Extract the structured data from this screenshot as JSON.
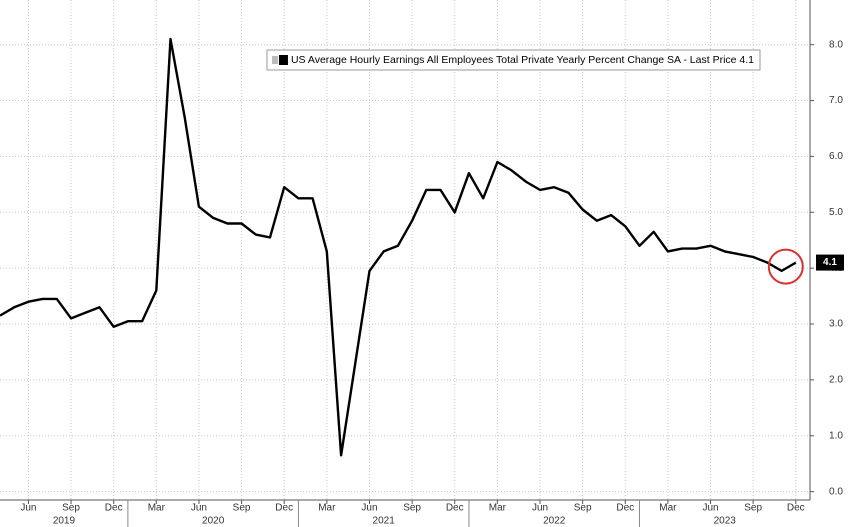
{
  "chart_data": {
    "type": "line",
    "legend": "US Average Hourly Earnings All Employees Total Private Yearly Percent Change SA - Last Price 4.1",
    "legend_corner": "top-right",
    "grid": true,
    "x": [
      "2019-04",
      "2019-05",
      "2019-06",
      "2019-07",
      "2019-08",
      "2019-09",
      "2019-10",
      "2019-11",
      "2019-12",
      "2020-01",
      "2020-02",
      "2020-03",
      "2020-04",
      "2020-05",
      "2020-06",
      "2020-07",
      "2020-08",
      "2020-09",
      "2020-10",
      "2020-11",
      "2020-12",
      "2021-01",
      "2021-02",
      "2021-03",
      "2021-04",
      "2021-05",
      "2021-06",
      "2021-07",
      "2021-08",
      "2021-09",
      "2021-10",
      "2021-11",
      "2021-12",
      "2022-01",
      "2022-02",
      "2022-03",
      "2022-04",
      "2022-05",
      "2022-06",
      "2022-07",
      "2022-08",
      "2022-09",
      "2022-10",
      "2022-11",
      "2022-12",
      "2023-01",
      "2023-02",
      "2023-03",
      "2023-04",
      "2023-05",
      "2023-06",
      "2023-07",
      "2023-08",
      "2023-09",
      "2023-10",
      "2023-11",
      "2023-12"
    ],
    "series": [
      {
        "name": "US Average Hourly Earnings All Employees Total Private Yearly Percent Change SA",
        "color": "#000000",
        "values": [
          3.15,
          3.3,
          3.4,
          3.45,
          3.45,
          3.1,
          3.2,
          3.3,
          2.95,
          3.05,
          3.05,
          3.6,
          8.1,
          6.7,
          5.1,
          4.9,
          4.8,
          4.8,
          4.6,
          4.55,
          5.45,
          5.25,
          5.25,
          4.3,
          0.65,
          2.3,
          3.95,
          4.3,
          4.4,
          4.85,
          5.4,
          5.4,
          5.0,
          5.7,
          5.25,
          5.9,
          5.75,
          5.55,
          5.4,
          5.45,
          5.35,
          5.05,
          4.85,
          4.95,
          4.75,
          4.4,
          4.65,
          4.3,
          4.35,
          4.35,
          4.4,
          4.3,
          4.25,
          4.2,
          4.1,
          3.95,
          4.1
        ]
      }
    ],
    "xlim": [
      "2019-04",
      "2024-01"
    ],
    "xticks": [
      {
        "value": "2019-06",
        "label": "Jun"
      },
      {
        "value": "2019-09",
        "label": "Sep"
      },
      {
        "value": "2019-12",
        "label": "Dec"
      },
      {
        "value": "2020-03",
        "label": "Mar"
      },
      {
        "value": "2020-06",
        "label": "Jun"
      },
      {
        "value": "2020-09",
        "label": "Sep"
      },
      {
        "value": "2020-12",
        "label": "Dec"
      },
      {
        "value": "2021-03",
        "label": "Mar"
      },
      {
        "value": "2021-06",
        "label": "Jun"
      },
      {
        "value": "2021-09",
        "label": "Sep"
      },
      {
        "value": "2021-12",
        "label": "Dec"
      },
      {
        "value": "2022-03",
        "label": "Mar"
      },
      {
        "value": "2022-06",
        "label": "Jun"
      },
      {
        "value": "2022-09",
        "label": "Sep"
      },
      {
        "value": "2022-12",
        "label": "Dec"
      },
      {
        "value": "2023-03",
        "label": "Mar"
      },
      {
        "value": "2023-06",
        "label": "Jun"
      },
      {
        "value": "2023-09",
        "label": "Sep"
      },
      {
        "value": "2023-12",
        "label": "Dec"
      }
    ],
    "years": [
      "2019",
      "2020",
      "2021",
      "2022",
      "2023"
    ],
    "ylim": [
      -0.15,
      8.8
    ],
    "yticks": [
      {
        "value": 0,
        "label": "0.0"
      },
      {
        "value": 1,
        "label": "1.0"
      },
      {
        "value": 2,
        "label": "2.0"
      },
      {
        "value": 3,
        "label": "3.0"
      },
      {
        "value": 4,
        "label": "4.0"
      },
      {
        "value": 5,
        "label": "5.0"
      },
      {
        "value": 6,
        "label": "6.0"
      },
      {
        "value": 7,
        "label": "7.0"
      },
      {
        "value": 8,
        "label": "8.0"
      }
    ]
  }
}
